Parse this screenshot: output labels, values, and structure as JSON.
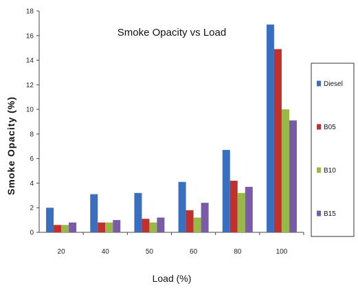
{
  "chart_data": {
    "type": "bar",
    "title": "Smoke Opacity vs Load",
    "xlabel": "Load (%)",
    "ylabel": "Smoke Opacity (%)",
    "ylim": [
      0,
      18
    ],
    "yticks": [
      0,
      2,
      4,
      6,
      8,
      10,
      12,
      14,
      16,
      18
    ],
    "categories": [
      "20",
      "40",
      "50",
      "60",
      "80",
      "100"
    ],
    "series": [
      {
        "name": "Diesel",
        "color": "#3A6FC0",
        "values": [
          2.0,
          3.1,
          3.2,
          4.1,
          6.7,
          16.9
        ]
      },
      {
        "name": "B05",
        "color": "#C0312E",
        "values": [
          0.6,
          0.8,
          1.1,
          1.8,
          4.2,
          14.9
        ]
      },
      {
        "name": "B10",
        "color": "#98B848",
        "values": [
          0.6,
          0.8,
          0.8,
          1.2,
          3.2,
          10.0
        ]
      },
      {
        "name": "B15",
        "color": "#7A5BA8",
        "values": [
          0.8,
          1.0,
          1.2,
          2.4,
          3.7,
          9.1
        ]
      }
    ],
    "legend_position": "right",
    "grid": false
  }
}
